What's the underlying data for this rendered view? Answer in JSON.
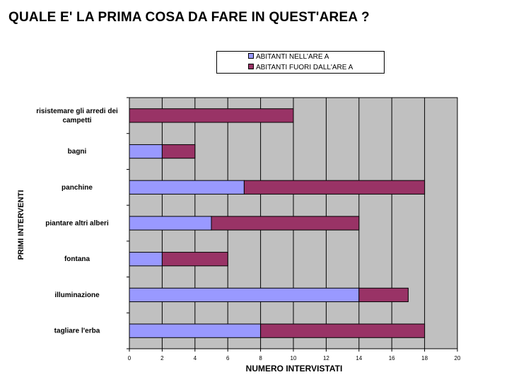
{
  "title": "QUALE E' LA PRIMA COSA DA FARE IN QUEST'AREA ?",
  "chart_data": {
    "type": "bar",
    "orientation": "horizontal",
    "stacked": true,
    "title": "QUALE E' LA PRIMA COSA DA FARE IN QUEST'AREA ?",
    "xlabel": "NUMERO INTERVISTATI",
    "ylabel": "PRIMI INTERVENTI",
    "xlim": [
      0,
      20
    ],
    "xticks": [
      0,
      2,
      4,
      6,
      8,
      10,
      12,
      14,
      16,
      18,
      20
    ],
    "grid": true,
    "legend_position": "top",
    "categories": [
      "risistemare gli arredi dei campetti",
      "bagni",
      "panchine",
      "piantare altri alberi",
      "fontana",
      "illuminazione",
      "tagliare l'erba"
    ],
    "series": [
      {
        "name": "ABITANTI NELL'ARE A",
        "color": "#9999ff",
        "values": [
          0,
          2,
          7,
          5,
          2,
          14,
          8
        ]
      },
      {
        "name": "ABITANTI FUORI DALL'ARE A",
        "color": "#993366",
        "values": [
          10,
          2,
          11,
          9,
          4,
          3,
          10
        ]
      }
    ],
    "plot_background": "#c0c0c0"
  }
}
